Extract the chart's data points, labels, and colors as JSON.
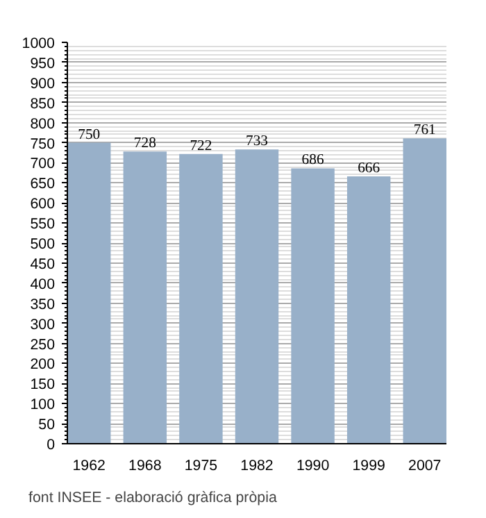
{
  "chart_data": {
    "type": "bar",
    "categories": [
      "1962",
      "1968",
      "1975",
      "1982",
      "1990",
      "1999",
      "2007"
    ],
    "values": [
      750,
      728,
      722,
      733,
      686,
      666,
      761
    ],
    "color": "#98b0c9",
    "ylim": [
      0,
      1000
    ],
    "yticks": [
      0,
      50,
      100,
      150,
      200,
      250,
      300,
      350,
      400,
      450,
      500,
      550,
      600,
      650,
      700,
      750,
      800,
      850,
      900,
      950,
      1000
    ],
    "grid": "y",
    "data_labels": true,
    "annotations": [
      "font INSEE - elaboració gràfica pròpia"
    ]
  }
}
